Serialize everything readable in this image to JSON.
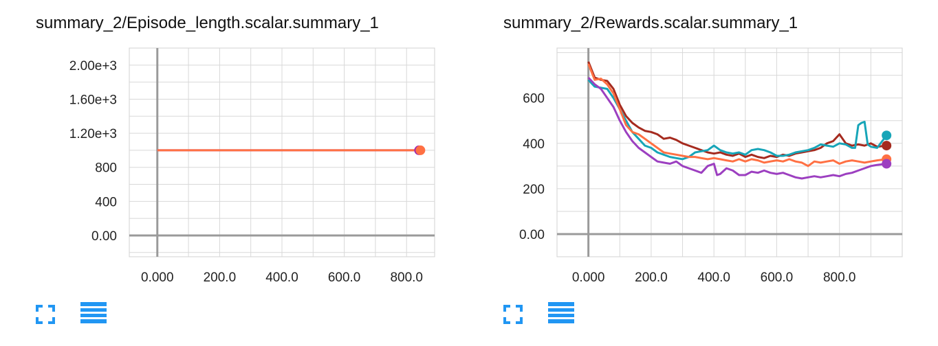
{
  "accent_color": "#2196f3",
  "chart_data": [
    {
      "type": "line",
      "title": "summary_2/Episode_length.scalar.summary_1",
      "xlabel": "",
      "ylabel": "",
      "xlim": [
        -90,
        890
      ],
      "ylim": [
        -250,
        2200
      ],
      "x_ticks": [
        0,
        200,
        400,
        600,
        800
      ],
      "x_tick_labels": [
        "0.000",
        "200.0",
        "400.0",
        "600.0",
        "800.0"
      ],
      "y_ticks": [
        0,
        400,
        800,
        1200,
        1600,
        2000
      ],
      "y_tick_labels": [
        "0.00",
        "400",
        "800",
        "1.20e+3",
        "1.60e+3",
        "2.00e+3"
      ],
      "grid": true,
      "series": [
        {
          "color": "#9c27b0",
          "x": [
            0,
            840
          ],
          "y": [
            1000,
            1000
          ]
        },
        {
          "color": "#ff7043",
          "x": [
            0,
            840
          ],
          "y": [
            1000,
            1000
          ]
        }
      ]
    },
    {
      "type": "line",
      "title": "summary_2/Rewards.scalar.summary_1",
      "xlabel": "",
      "ylabel": "",
      "xlim": [
        -100,
        1000
      ],
      "ylim": [
        -100,
        820
      ],
      "x_ticks": [
        0,
        200,
        400,
        600,
        800
      ],
      "x_tick_labels": [
        "0.000",
        "200.0",
        "400.0",
        "600.0",
        "800.0"
      ],
      "y_ticks": [
        0,
        200,
        400,
        600
      ],
      "y_tick_labels": [
        "0.00",
        "200",
        "400",
        "600"
      ],
      "grid": true,
      "series": [
        {
          "color": "#a52a1e",
          "x": [
            0,
            20,
            40,
            60,
            80,
            100,
            120,
            140,
            160,
            180,
            200,
            220,
            240,
            260,
            280,
            300,
            320,
            340,
            360,
            380,
            400,
            420,
            440,
            460,
            480,
            500,
            520,
            540,
            560,
            580,
            600,
            620,
            640,
            660,
            680,
            700,
            720,
            740,
            760,
            780,
            800,
            820,
            840,
            860,
            880,
            900,
            920,
            950
          ],
          "y": [
            760,
            690,
            680,
            675,
            640,
            570,
            520,
            490,
            470,
            455,
            450,
            440,
            420,
            425,
            415,
            400,
            390,
            380,
            370,
            360,
            355,
            360,
            350,
            345,
            355,
            340,
            350,
            340,
            335,
            345,
            340,
            350,
            345,
            355,
            360,
            365,
            370,
            380,
            400,
            410,
            440,
            400,
            390,
            395,
            390,
            400,
            385,
            390
          ]
        },
        {
          "color": "#17a5b8",
          "x": [
            0,
            20,
            40,
            60,
            80,
            100,
            120,
            140,
            160,
            180,
            200,
            220,
            240,
            260,
            280,
            300,
            320,
            340,
            360,
            380,
            400,
            420,
            440,
            460,
            480,
            500,
            520,
            540,
            560,
            580,
            600,
            620,
            640,
            660,
            680,
            700,
            720,
            740,
            760,
            780,
            800,
            820,
            840,
            850,
            860,
            870,
            880,
            890,
            900,
            920,
            950
          ],
          "y": [
            680,
            650,
            645,
            640,
            600,
            550,
            500,
            450,
            420,
            390,
            380,
            360,
            350,
            340,
            335,
            330,
            340,
            360,
            365,
            370,
            390,
            370,
            360,
            355,
            360,
            350,
            370,
            375,
            370,
            360,
            345,
            345,
            350,
            360,
            365,
            370,
            380,
            395,
            390,
            385,
            400,
            395,
            380,
            380,
            480,
            490,
            495,
            395,
            385,
            380,
            435
          ]
        },
        {
          "color": "#ff7043",
          "x": [
            0,
            20,
            40,
            60,
            80,
            100,
            120,
            140,
            160,
            180,
            200,
            220,
            240,
            260,
            280,
            300,
            320,
            340,
            360,
            380,
            400,
            420,
            440,
            460,
            480,
            500,
            520,
            540,
            560,
            580,
            600,
            620,
            640,
            660,
            680,
            700,
            720,
            740,
            760,
            780,
            800,
            820,
            840,
            860,
            880,
            900,
            920,
            950
          ],
          "y": [
            750,
            680,
            685,
            660,
            620,
            550,
            480,
            450,
            440,
            420,
            400,
            380,
            360,
            355,
            350,
            345,
            340,
            340,
            335,
            330,
            335,
            330,
            325,
            320,
            330,
            320,
            330,
            325,
            315,
            320,
            325,
            320,
            330,
            320,
            315,
            300,
            320,
            315,
            320,
            325,
            310,
            320,
            325,
            320,
            315,
            320,
            325,
            330
          ]
        },
        {
          "color": "#9c3fc0",
          "x": [
            0,
            20,
            40,
            60,
            80,
            100,
            120,
            140,
            160,
            180,
            200,
            220,
            240,
            260,
            280,
            300,
            320,
            340,
            360,
            380,
            400,
            410,
            420,
            440,
            460,
            480,
            500,
            520,
            540,
            560,
            580,
            600,
            620,
            640,
            660,
            680,
            700,
            720,
            740,
            760,
            780,
            800,
            820,
            840,
            860,
            880,
            900,
            920,
            950
          ],
          "y": [
            690,
            660,
            640,
            600,
            560,
            500,
            450,
            410,
            380,
            360,
            340,
            320,
            315,
            310,
            320,
            300,
            290,
            280,
            270,
            300,
            310,
            260,
            265,
            290,
            280,
            260,
            260,
            275,
            270,
            280,
            270,
            265,
            270,
            260,
            250,
            245,
            250,
            255,
            250,
            255,
            260,
            255,
            265,
            270,
            280,
            290,
            300,
            305,
            310
          ]
        }
      ]
    }
  ]
}
